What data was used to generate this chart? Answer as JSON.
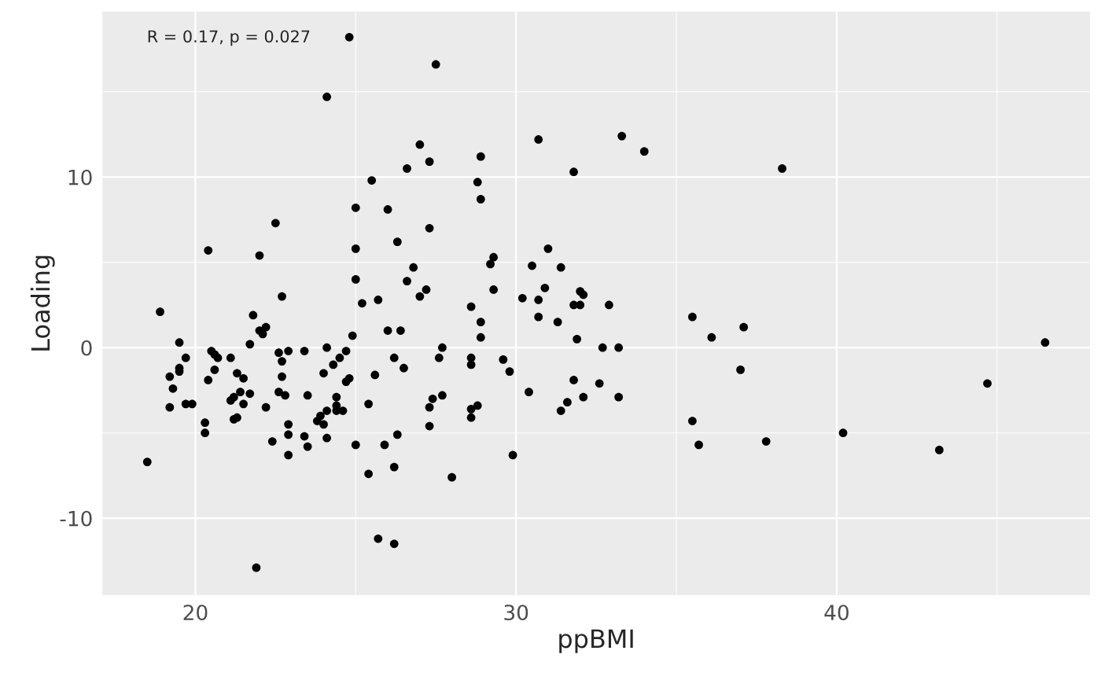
{
  "chart_data": {
    "type": "scatter",
    "xlabel": "ppBMI",
    "ylabel": "Loading",
    "annotations": [
      "R = 0.17, p = 0.027"
    ],
    "xlim": [
      17.1,
      47.9
    ],
    "ylim": [
      -14.5,
      19.7
    ],
    "xticks": [
      20,
      30,
      40
    ],
    "yticks": [
      -10,
      0,
      10
    ],
    "grid": true,
    "marker": "circle",
    "series": [
      {
        "color": "#000000",
        "x": [
          18.5,
          18.9,
          19.2,
          19.2,
          19.3,
          19.5,
          19.5,
          19.5,
          19.7,
          19.7,
          19.9,
          20.3,
          20.3,
          20.4,
          20.4,
          20.5,
          20.6,
          20.6,
          20.7,
          21.1,
          21.1,
          21.2,
          21.2,
          21.3,
          21.3,
          21.4,
          21.5,
          21.5,
          21.7,
          21.7,
          21.8,
          22.0,
          22.0,
          22.1,
          22.2,
          22.2,
          21.9,
          22.4,
          22.5,
          22.6,
          22.6,
          22.7,
          22.7,
          22.7,
          22.8,
          22.9,
          22.9,
          22.9,
          22.9,
          23.4,
          23.4,
          23.5,
          23.5,
          23.8,
          23.9,
          24.0,
          24.0,
          24.1,
          24.1,
          24.1,
          24.1,
          24.3,
          24.4,
          24.4,
          24.4,
          24.5,
          24.6,
          24.7,
          24.7,
          24.8,
          24.8,
          24.9,
          25.0,
          25.0,
          25.0,
          25.0,
          25.2,
          25.4,
          25.4,
          25.5,
          25.6,
          25.7,
          25.7,
          25.9,
          26.0,
          26.0,
          26.2,
          26.2,
          26.2,
          26.3,
          26.3,
          26.4,
          26.5,
          26.6,
          26.6,
          26.8,
          27.0,
          27.0,
          27.2,
          27.3,
          27.3,
          27.3,
          27.3,
          27.4,
          27.5,
          27.6,
          27.7,
          27.7,
          28.0,
          28.6,
          28.6,
          28.6,
          28.6,
          28.6,
          28.8,
          28.8,
          28.9,
          28.9,
          28.9,
          28.9,
          29.2,
          29.3,
          29.3,
          29.6,
          29.8,
          29.9,
          30.2,
          30.4,
          30.5,
          30.7,
          30.7,
          30.7,
          30.9,
          31.0,
          31.3,
          31.4,
          31.4,
          31.6,
          31.8,
          31.8,
          31.8,
          31.9,
          32.0,
          32.0,
          32.1,
          32.1,
          32.6,
          32.7,
          32.9,
          33.2,
          33.2,
          33.3,
          34.0,
          35.5,
          35.5,
          35.7,
          36.1,
          37.0,
          37.1,
          37.8,
          38.3,
          40.2,
          43.2,
          44.7,
          46.5
        ],
        "values": [
          -6.7,
          2.1,
          -1.7,
          -3.5,
          -2.4,
          0.3,
          -1.4,
          -1.2,
          -3.3,
          -0.6,
          -3.3,
          -4.4,
          -5.0,
          -1.9,
          5.7,
          -0.2,
          -0.4,
          -1.3,
          -0.6,
          -0.6,
          -3.1,
          -2.9,
          -4.2,
          -4.1,
          -1.5,
          -2.6,
          -1.8,
          -3.3,
          0.2,
          -2.7,
          1.9,
          1.0,
          5.4,
          0.8,
          1.2,
          -3.5,
          -12.9,
          -5.5,
          7.3,
          -0.3,
          -2.6,
          3.0,
          -0.8,
          -1.7,
          -2.8,
          -0.2,
          -4.5,
          -5.1,
          -6.3,
          -0.2,
          -5.2,
          -5.8,
          -2.8,
          -4.3,
          -4.0,
          -4.5,
          -1.5,
          -3.7,
          14.7,
          0.0,
          -5.3,
          -1.0,
          -2.9,
          -3.4,
          -3.7,
          -0.6,
          -3.7,
          -2.0,
          -0.2,
          -1.8,
          18.2,
          0.7,
          8.2,
          5.8,
          4.0,
          -5.7,
          2.6,
          -3.3,
          -7.4,
          9.8,
          -1.6,
          2.8,
          -11.2,
          -5.7,
          1.0,
          8.1,
          -0.6,
          -7.0,
          -11.5,
          6.2,
          -5.1,
          1.0,
          -1.2,
          3.9,
          10.5,
          4.7,
          11.9,
          3.0,
          3.4,
          7.0,
          -4.6,
          10.9,
          -3.5,
          -3.0,
          16.6,
          -0.6,
          -2.8,
          0.0,
          -7.6,
          -4.1,
          -0.6,
          2.4,
          -3.6,
          -1.0,
          9.7,
          -3.4,
          1.5,
          11.2,
          8.7,
          0.6,
          4.9,
          5.3,
          3.4,
          -0.7,
          -1.4,
          -6.3,
          2.9,
          -2.6,
          4.8,
          1.8,
          2.8,
          12.2,
          3.5,
          5.8,
          1.5,
          -3.7,
          4.7,
          -3.2,
          10.3,
          -1.9,
          2.5,
          0.5,
          2.5,
          3.3,
          3.1,
          -2.9,
          -2.1,
          0.0,
          2.5,
          0.0,
          -2.9,
          12.4,
          11.5,
          1.8,
          -4.3,
          -5.7,
          0.6,
          -1.3,
          1.2,
          -5.5,
          10.5,
          -5.0,
          -6.0,
          -2.1,
          0.3
        ]
      }
    ]
  }
}
